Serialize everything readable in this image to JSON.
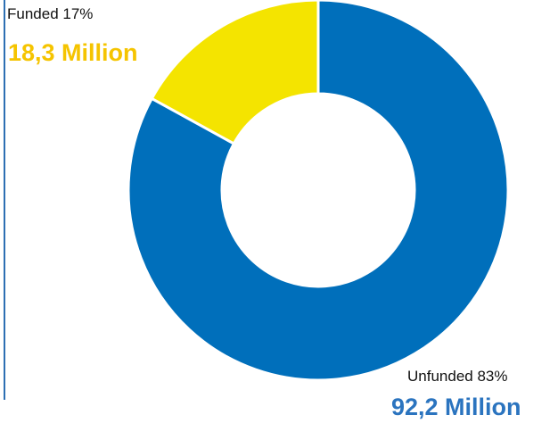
{
  "chart_data": {
    "type": "pie",
    "donut": true,
    "series": [
      {
        "name": "Funded",
        "percent": 17,
        "value": 18.3,
        "percent_label": "Funded 17%",
        "amount_label": "18,3 Million",
        "color": "#f4e400"
      },
      {
        "name": "Unfunded",
        "percent": 83,
        "value": 92.2,
        "percent_label": "Unfunded 83%",
        "amount_label": "92,2 Million",
        "color": "#006fbb"
      }
    ]
  }
}
